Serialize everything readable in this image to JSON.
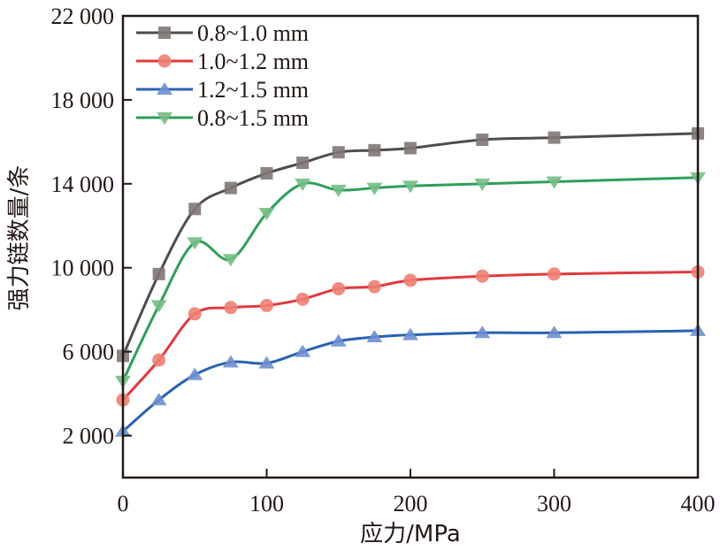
{
  "chart_data": {
    "type": "line",
    "title": "",
    "xlabel": "应力/MPa",
    "ylabel": "强力链数量/条",
    "xlim": [
      0,
      400
    ],
    "ylim": [
      0,
      22000
    ],
    "x_ticks": [
      0,
      100,
      200,
      300,
      400
    ],
    "x_tick_labels": [
      "0",
      "100",
      "200",
      "300",
      "400"
    ],
    "y_ticks": [
      2000,
      6000,
      10000,
      14000,
      18000,
      22000
    ],
    "y_tick_labels": [
      "2 000",
      "6 000",
      "10 000",
      "14 000",
      "18 000",
      "22 000"
    ],
    "grid": false,
    "legend_position": "top-left",
    "x": [
      0,
      25,
      50,
      75,
      100,
      125,
      150,
      175,
      200,
      250,
      300,
      400
    ],
    "series": [
      {
        "name": "0.8~1.0 mm",
        "color": "#4d4d4d",
        "marker_color": "#7f7775",
        "marker": "square",
        "values": [
          5800,
          9700,
          12800,
          13800,
          14500,
          15000,
          15500,
          15600,
          15700,
          16100,
          16200,
          16400
        ]
      },
      {
        "name": "1.0~1.2 mm",
        "color": "#e03a3e",
        "marker_color": "#ee7f72",
        "marker": "circle",
        "values": [
          3700,
          5600,
          7800,
          8100,
          8200,
          8500,
          9000,
          9100,
          9400,
          9600,
          9700,
          9800
        ]
      },
      {
        "name": "1.2~1.5 mm",
        "color": "#2a62b0",
        "marker_color": "#6d8fd0",
        "marker": "triangle-up",
        "values": [
          2200,
          3700,
          4900,
          5500,
          5450,
          6000,
          6500,
          6700,
          6800,
          6900,
          6900,
          7000
        ]
      },
      {
        "name": "0.8~1.5 mm",
        "color": "#2f9e5a",
        "marker_color": "#73bd84",
        "marker": "triangle-down",
        "values": [
          4600,
          8200,
          11200,
          10400,
          12600,
          14000,
          13700,
          13800,
          13900,
          14000,
          14100,
          14300
        ]
      }
    ]
  }
}
